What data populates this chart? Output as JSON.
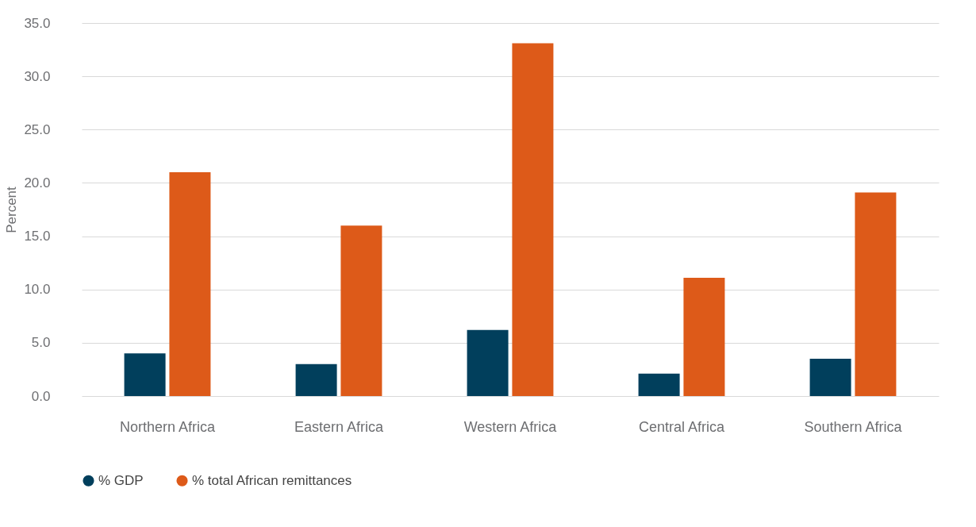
{
  "chart_data": {
    "type": "bar",
    "ylabel": "Percent",
    "categories": [
      "Northern Africa",
      "Eastern Africa",
      "Western Africa",
      "Central Africa",
      "Southern Africa"
    ],
    "series": [
      {
        "name": "% GDP",
        "color": "#013f5c",
        "values": [
          4.0,
          3.0,
          6.2,
          2.1,
          3.5
        ]
      },
      {
        "name": "% total African remittances",
        "color": "#dd5a19",
        "values": [
          21.0,
          16.0,
          33.1,
          11.1,
          19.1
        ]
      }
    ],
    "ylim": [
      0,
      35
    ],
    "yticks": [
      {
        "value": 0,
        "label": "0.0"
      },
      {
        "value": 5,
        "label": "5.0"
      },
      {
        "value": 10,
        "label": "10.0"
      },
      {
        "value": 15,
        "label": "15.0"
      },
      {
        "value": 20,
        "label": "20.0"
      },
      {
        "value": 25,
        "label": "25.0"
      },
      {
        "value": 30,
        "label": "30.0"
      },
      {
        "value": 35,
        "label": "35.0"
      }
    ],
    "grid": "y",
    "legend": "bottom"
  }
}
